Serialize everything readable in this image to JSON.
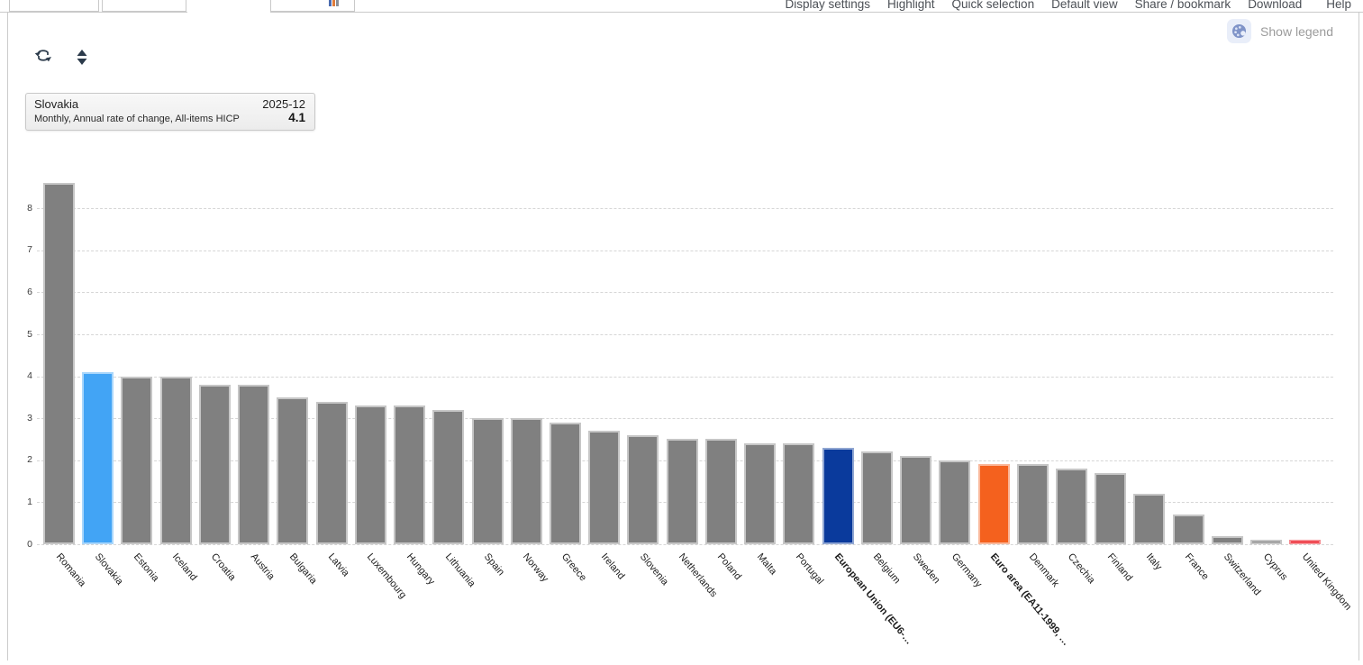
{
  "header": {
    "menu": [
      "Display settings",
      "Highlight",
      "Quick selection",
      "Default view",
      "Share / bookmark",
      "Download",
      "Help"
    ],
    "tab_icon": "mini-bar-chart-icon"
  },
  "toolbar": {
    "icons": [
      "swap-axes-icon",
      "sort-icon"
    ]
  },
  "legend_toggle": {
    "label": "Show legend",
    "icon": "palette-icon"
  },
  "tooltip": {
    "series": "Slovakia",
    "subtitle": "Monthly, Annual rate of change, All-items HICP",
    "period": "2025-12",
    "value": "4.1"
  },
  "chart_data": {
    "type": "bar",
    "title": "",
    "xlabel": "",
    "ylabel": "",
    "grid": true,
    "legend_position": "hidden",
    "ylim": [
      0,
      8.8
    ],
    "yticks": [
      0,
      1,
      2,
      3,
      4,
      5,
      6,
      7,
      8
    ],
    "categories": [
      "Romania",
      "Slovakia",
      "Estonia",
      "Iceland",
      "Croatia",
      "Austria",
      "Bulgaria",
      "Latvia",
      "Luxembourg",
      "Hungary",
      "Lithuania",
      "Spain",
      "Norway",
      "Greece",
      "Ireland",
      "Slovenia",
      "Netherlands",
      "Poland",
      "Malta",
      "Portugal",
      "European Union (EU6-…",
      "Belgium",
      "Sweden",
      "Germany",
      "Euro area (EA11-1999, …",
      "Denmark",
      "Czechia",
      "Finland",
      "Italy",
      "France",
      "Switzerland",
      "Cyprus",
      "United Kingdom"
    ],
    "values": [
      8.6,
      4.1,
      4.0,
      4.0,
      3.8,
      3.8,
      3.5,
      3.4,
      3.3,
      3.3,
      3.2,
      3.0,
      3.0,
      2.9,
      2.7,
      2.6,
      2.5,
      2.5,
      2.4,
      2.4,
      2.3,
      2.2,
      2.1,
      2.0,
      1.9,
      1.9,
      1.8,
      1.7,
      1.2,
      0.7,
      0.2,
      0.1,
      0.1
    ],
    "default_color": "#808080",
    "highlight_colors": {
      "Slovakia": "#42a4f5",
      "European Union (EU6-…": "#0a3a9c",
      "Euro area (EA11-1999, …": "#f4611e",
      "United Kingdom": "#e8000d"
    },
    "bold_categories": [
      "European Union (EU6-…",
      "Euro area (EA11-1999, …"
    ]
  }
}
